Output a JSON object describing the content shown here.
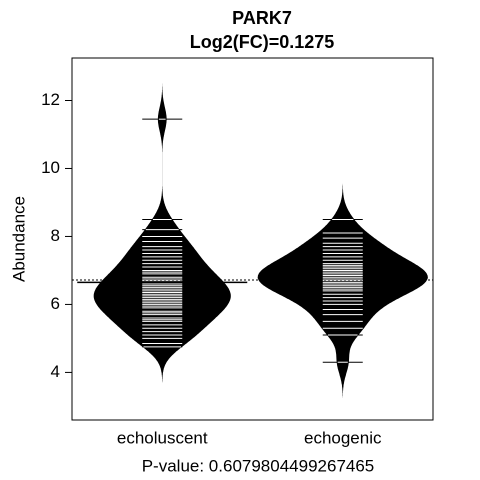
{
  "chart_data": {
    "type": "beanplot",
    "title": "PARK7",
    "subtitle": "Log2(FC)=0.1275",
    "y_label": "Abundance",
    "x_label": "P-value: 0.6079804499267465",
    "color": "#000000",
    "ylim": [
      2.6,
      13.25
    ],
    "yticks": [
      4,
      6,
      8,
      10,
      12
    ],
    "overall_mean": 6.72,
    "series": [
      {
        "name": "echoluscent",
        "mean": 6.65,
        "values": [
          4.75,
          4.85,
          5.0,
          5.1,
          5.2,
          5.3,
          5.4,
          5.5,
          5.55,
          5.6,
          5.7,
          5.75,
          5.8,
          5.9,
          5.95,
          6.0,
          6.05,
          6.1,
          6.15,
          6.2,
          6.25,
          6.3,
          6.35,
          6.4,
          6.45,
          6.5,
          6.55,
          6.6,
          6.7,
          6.75,
          6.8,
          6.9,
          6.95,
          7.0,
          7.1,
          7.2,
          7.3,
          7.4,
          7.5,
          7.6,
          7.7,
          7.85,
          8.0,
          8.2,
          8.5,
          11.45
        ]
      },
      {
        "name": "echogenic",
        "mean": 6.78,
        "values": [
          4.3,
          5.1,
          5.3,
          5.5,
          5.7,
          5.85,
          6.0,
          6.1,
          6.2,
          6.3,
          6.4,
          6.45,
          6.5,
          6.55,
          6.6,
          6.65,
          6.7,
          6.75,
          6.8,
          6.85,
          6.9,
          6.95,
          7.0,
          7.05,
          7.1,
          7.15,
          7.2,
          7.3,
          7.4,
          7.5,
          7.6,
          7.7,
          7.8,
          7.95,
          8.1,
          8.5
        ]
      }
    ]
  }
}
